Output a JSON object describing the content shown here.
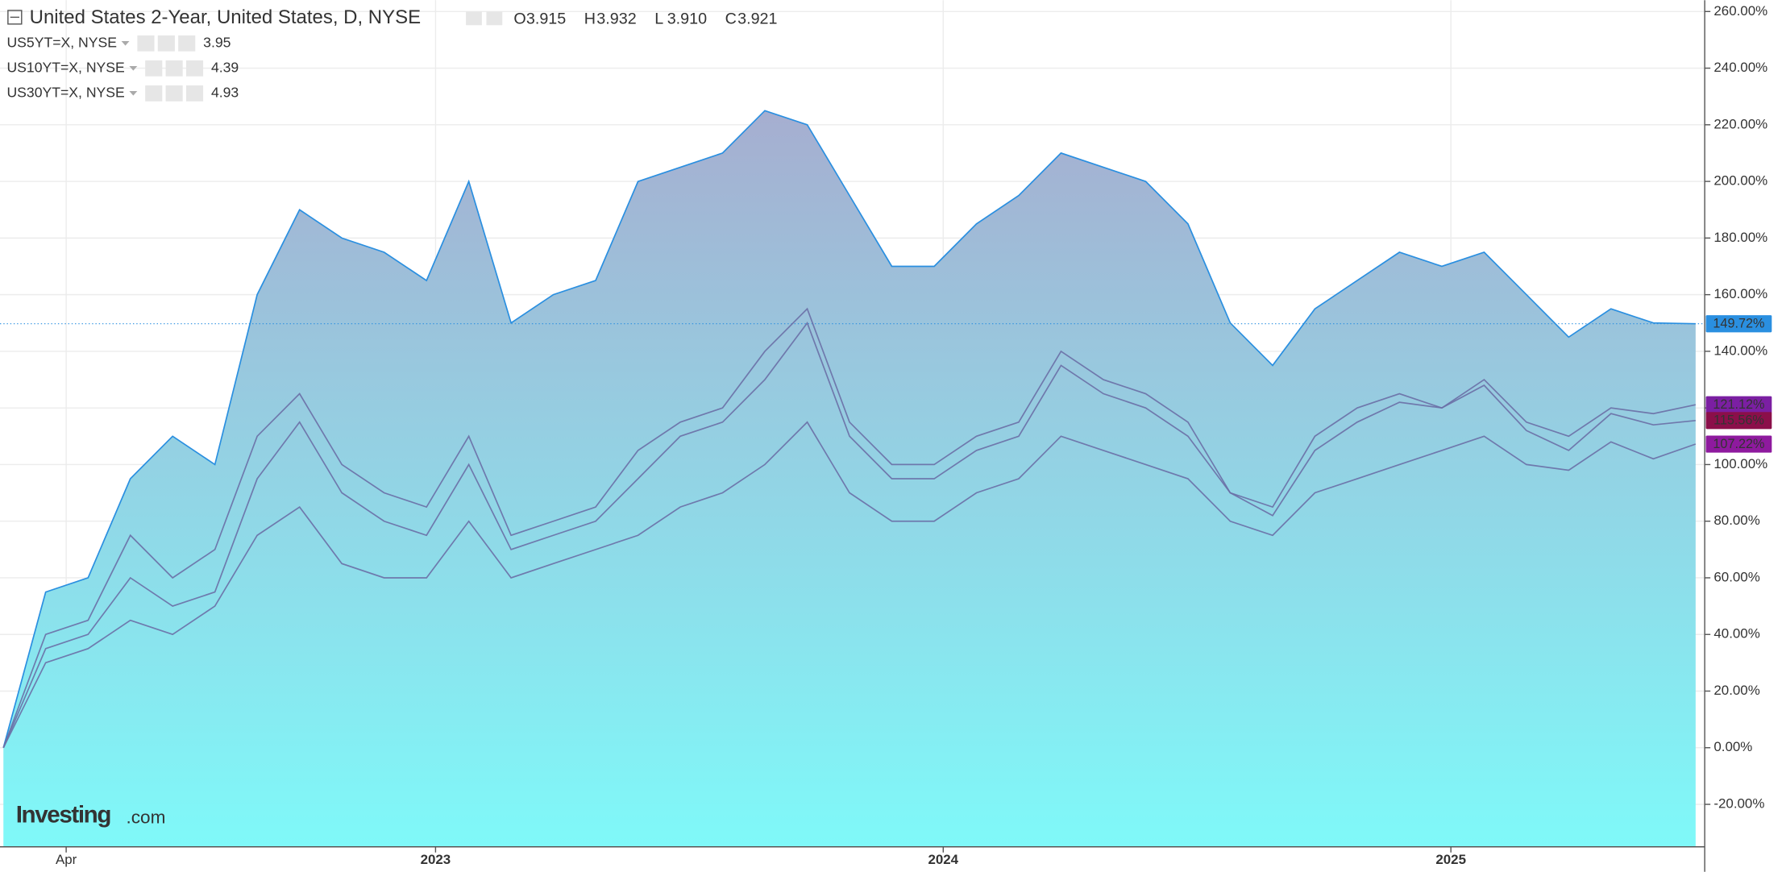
{
  "chart_data": {
    "type": "area-line",
    "title": "United States 2-Year, United States, D, NYSE",
    "ohlc": [
      {
        "name": "O",
        "value": "3.915"
      },
      {
        "name": "H",
        "value": "3.932"
      },
      {
        "name": "L",
        "value": "3.910"
      },
      {
        "name": "C",
        "value": "3.921"
      }
    ],
    "watermark": [
      "Investing",
      ".com"
    ],
    "categories": [
      null,
      "Apr",
      null,
      null,
      null,
      null,
      null,
      null,
      null,
      null,
      "2023",
      null,
      null,
      null,
      null,
      null,
      null,
      null,
      null,
      null,
      null,
      null,
      "2024",
      null,
      null,
      null,
      null,
      null,
      null,
      null,
      null,
      null,
      null,
      null,
      "2025",
      null,
      null,
      null,
      null,
      null,
      null
    ],
    "ylim": [
      -35,
      264
    ],
    "yticks": [
      {
        "value": -20,
        "label": "-20.00%"
      },
      {
        "value": 0,
        "label": "0.00%"
      },
      {
        "value": 20,
        "label": "20.00%"
      },
      {
        "value": 40,
        "label": "40.00%"
      },
      {
        "value": 60,
        "label": "60.00%"
      },
      {
        "value": 80,
        "label": "80.00%"
      },
      {
        "value": 100,
        "label": "100.00%"
      },
      {
        "value": 120,
        "label": "120.00%"
      },
      {
        "value": 140,
        "label": "140.00%"
      },
      {
        "value": 160,
        "label": "160.00%"
      },
      {
        "value": 180,
        "label": "180.00%"
      },
      {
        "value": 200,
        "label": "200.00%"
      },
      {
        "value": 220,
        "label": "220.00%"
      },
      {
        "value": 240,
        "label": "240.00%"
      },
      {
        "value": 260,
        "label": "260.00%"
      }
    ],
    "grid": true,
    "series": [
      {
        "name": "United States 2-Year",
        "color": "#2a8fe0",
        "fill": true,
        "last_label": "149.72%",
        "values": [
          0,
          55,
          60,
          95,
          110,
          100,
          160,
          190,
          180,
          175,
          165,
          200,
          150,
          160,
          165,
          200,
          205,
          210,
          225,
          220,
          195,
          170,
          170,
          185,
          195,
          210,
          205,
          200,
          185,
          150,
          135,
          155,
          165,
          175,
          170,
          175,
          160,
          145,
          155,
          150,
          149.72
        ]
      },
      {
        "name": "US5YT=X, NYSE",
        "color": "#7b1fa2",
        "line_color": "#6a6fa6",
        "price": "3.95",
        "last_label": "121.12%",
        "values": [
          0,
          40,
          45,
          75,
          60,
          70,
          110,
          125,
          100,
          90,
          85,
          110,
          75,
          80,
          85,
          105,
          115,
          120,
          140,
          155,
          115,
          100,
          100,
          110,
          115,
          140,
          130,
          125,
          115,
          90,
          85,
          110,
          120,
          125,
          120,
          130,
          115,
          110,
          120,
          118,
          121.12
        ]
      },
      {
        "name": "US10YT=X, NYSE",
        "color": "#8b0f4a",
        "line_color": "#6a6fa6",
        "price": "4.39",
        "last_label": "115.56%",
        "values": [
          0,
          35,
          40,
          60,
          50,
          55,
          95,
          115,
          90,
          80,
          75,
          100,
          70,
          75,
          80,
          95,
          110,
          115,
          130,
          150,
          110,
          95,
          95,
          105,
          110,
          135,
          125,
          120,
          110,
          90,
          82,
          105,
          115,
          122,
          120,
          128,
          112,
          105,
          118,
          114,
          115.56
        ]
      },
      {
        "name": "US30YT=X, NYSE",
        "color": "#8e1a9e",
        "line_color": "#6a6fa6",
        "price": "4.93",
        "last_label": "107.22%",
        "values": [
          0,
          30,
          35,
          45,
          40,
          50,
          75,
          85,
          65,
          60,
          60,
          80,
          60,
          65,
          70,
          75,
          85,
          90,
          100,
          115,
          90,
          80,
          80,
          90,
          95,
          110,
          105,
          100,
          95,
          80,
          75,
          90,
          95,
          100,
          105,
          110,
          100,
          98,
          108,
          102,
          107.22
        ]
      }
    ]
  }
}
